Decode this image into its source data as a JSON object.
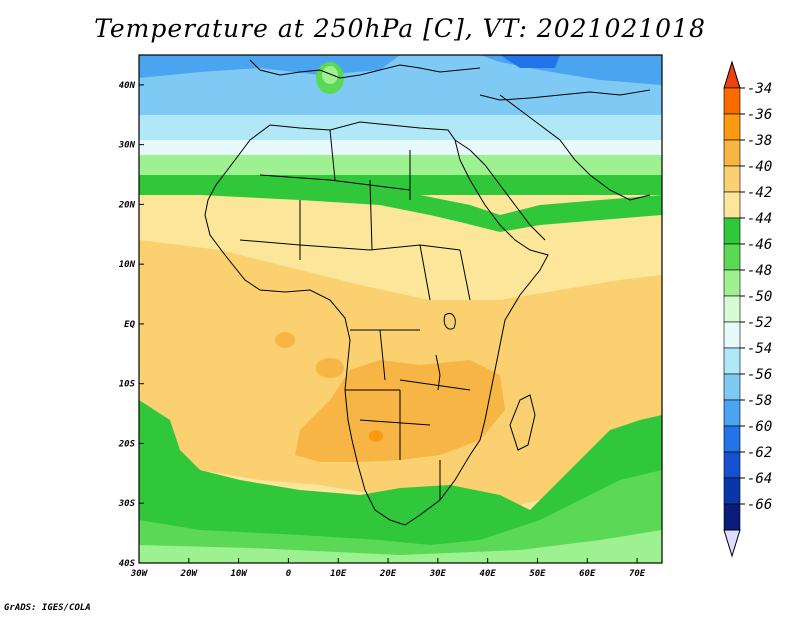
{
  "title": "Temperature at 250hPa [C], VT: 2021021018",
  "credit": "GrADS: IGES/COLA",
  "map": {
    "lon_range": [
      -30,
      75
    ],
    "lat_range": [
      -40,
      45
    ],
    "lon_ticks": [
      "30W",
      "20W",
      "10W",
      "0",
      "10E",
      "20E",
      "30E",
      "40E",
      "50E",
      "60E",
      "70E"
    ],
    "lat_ticks": [
      "40N",
      "30N",
      "20N",
      "10N",
      "EQ",
      "10S",
      "20S",
      "30S",
      "40S"
    ]
  },
  "colorbar": {
    "labels": [
      "-34",
      "-36",
      "-38",
      "-40",
      "-42",
      "-44",
      "-46",
      "-48",
      "-50",
      "-52",
      "-54",
      "-56",
      "-58",
      "-60",
      "-62",
      "-64",
      "-66"
    ],
    "colors": [
      "#f04010",
      "#fa6a00",
      "#fb9a10",
      "#f7b545",
      "#fad070",
      "#fbe69a",
      "#30c83a",
      "#5bd956",
      "#9df190",
      "#d6fad2",
      "#e6fafc",
      "#b0e8f8",
      "#7fcaf5",
      "#4aa4f0",
      "#2274e8",
      "#1450d0",
      "#0b36a8",
      "#0a1c7a",
      "#dedcff"
    ]
  },
  "chart_data": {
    "type": "heatmap",
    "title": "Temperature at 250hPa [C], VT: 2021021018",
    "x_ticks": [
      "30W",
      "20W",
      "10W",
      "0",
      "10E",
      "20E",
      "30E",
      "40E",
      "50E",
      "60E",
      "70E"
    ],
    "y_ticks": [
      "40N",
      "30N",
      "20N",
      "10N",
      "EQ",
      "10S",
      "20S",
      "30S",
      "40S"
    ],
    "xlim": [
      -30,
      75
    ],
    "ylim": [
      -40,
      45
    ],
    "levels": [
      -66,
      -64,
      -62,
      -60,
      -58,
      -56,
      -54,
      -52,
      -50,
      -48,
      -46,
      -44,
      -42,
      -40,
      -38,
      -36,
      -34
    ]
  }
}
